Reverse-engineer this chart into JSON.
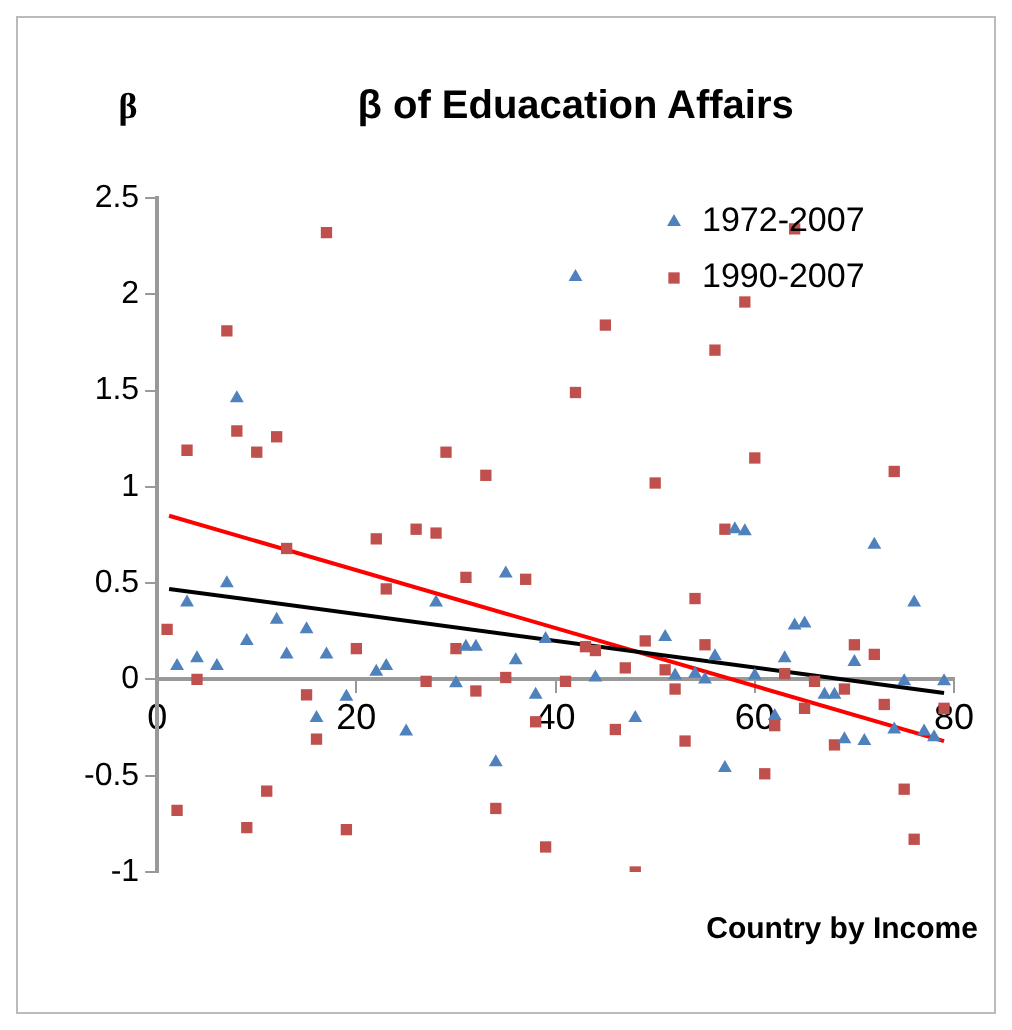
{
  "chart_data": {
    "type": "scatter",
    "title": "β of Eduacation Affairs",
    "ylabel": "β",
    "xlabel": "Country by Income",
    "xlim": [
      0,
      80
    ],
    "xticks": [
      0,
      20,
      40,
      60,
      80
    ],
    "ylim": [
      -1,
      2.5
    ],
    "yticks": [
      -1,
      -0.5,
      0,
      0.5,
      1,
      1.5,
      2,
      2.5
    ],
    "grid": false,
    "legend": "top right",
    "series": [
      {
        "name": "1972-2007",
        "color": "#4f81bd",
        "marker": "triangle",
        "x": [
          2,
          3,
          4,
          6,
          7,
          8,
          9,
          12,
          13,
          15,
          16,
          17,
          19,
          22,
          23,
          25,
          28,
          30,
          31,
          32,
          34,
          35,
          36,
          38,
          39,
          42,
          44,
          48,
          51,
          52,
          54,
          55,
          56,
          57,
          58,
          59,
          60,
          62,
          63,
          64,
          65,
          67,
          68,
          69,
          70,
          71,
          72,
          74,
          75,
          76,
          77,
          78,
          79
        ],
        "values": [
          0.07,
          0.4,
          0.11,
          0.07,
          0.5,
          1.46,
          0.2,
          0.31,
          0.13,
          0.26,
          -0.2,
          0.13,
          -0.09,
          0.04,
          0.07,
          -0.27,
          0.4,
          -0.02,
          0.17,
          0.17,
          -0.43,
          0.55,
          0.1,
          -0.08,
          0.21,
          2.09,
          0.01,
          -0.2,
          0.22,
          0.02,
          0.03,
          0.0,
          0.12,
          -0.46,
          0.78,
          0.77,
          0.02,
          -0.19,
          0.11,
          0.28,
          0.29,
          -0.08,
          -0.08,
          -0.31,
          0.09,
          -0.32,
          0.7,
          -0.26,
          -0.01,
          0.4,
          -0.27,
          -0.3,
          -0.01
        ]
      },
      {
        "name": "1990-2007",
        "color": "#c0504d",
        "marker": "square",
        "x": [
          1,
          2,
          3,
          4,
          7,
          8,
          9,
          10,
          11,
          12,
          13,
          15,
          16,
          17,
          19,
          20,
          22,
          23,
          26,
          27,
          28,
          29,
          30,
          31,
          32,
          33,
          34,
          35,
          37,
          38,
          39,
          41,
          42,
          43,
          44,
          45,
          46,
          47,
          48,
          49,
          50,
          51,
          52,
          53,
          54,
          55,
          56,
          57,
          59,
          60,
          61,
          62,
          63,
          64,
          65,
          66,
          68,
          69,
          70,
          72,
          73,
          74,
          75,
          76,
          79
        ],
        "values": [
          0.26,
          -0.68,
          1.19,
          0.0,
          1.81,
          1.29,
          -0.77,
          1.18,
          -0.58,
          1.26,
          0.68,
          -0.08,
          -0.31,
          2.32,
          -0.78,
          0.16,
          0.73,
          0.47,
          0.78,
          -0.01,
          0.76,
          1.18,
          0.16,
          0.53,
          -0.06,
          1.06,
          -0.67,
          0.01,
          0.52,
          -0.22,
          -0.87,
          -0.01,
          1.49,
          0.17,
          0.15,
          1.84,
          -0.26,
          0.06,
          -1.0,
          0.2,
          1.02,
          0.05,
          -0.05,
          -0.32,
          0.42,
          0.18,
          1.71,
          0.78,
          1.96,
          1.15,
          -0.49,
          -0.24,
          0.03,
          2.34,
          -0.15,
          -0.01,
          -0.34,
          -0.05,
          0.18,
          0.13,
          -0.13,
          1.08,
          -0.57,
          -0.83,
          -0.15
        ]
      },
      {
        "type": "line",
        "color": "#000000",
        "marker": "none",
        "x": [
          1.2,
          79
        ],
        "values": [
          0.47,
          -0.07
        ]
      },
      {
        "type": "line",
        "color": "#ff0000",
        "marker": "none",
        "x": [
          1.2,
          79
        ],
        "values": [
          0.85,
          -0.32
        ]
      }
    ]
  }
}
